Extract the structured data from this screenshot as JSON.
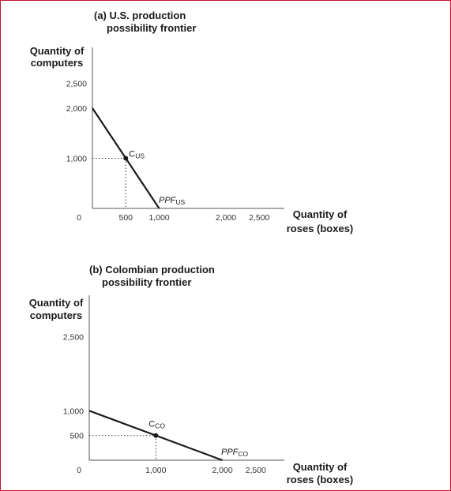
{
  "chart_data": [
    {
      "type": "line",
      "title_line1": "(a) U.S. production",
      "title_line2": "possibility frontier",
      "ylabel_line1": "Quantity of",
      "ylabel_line2": "computers",
      "xlabel_line1": "Quantity of",
      "xlabel_line2": "roses (boxes)",
      "xlim": [
        0,
        2700
      ],
      "ylim": [
        0,
        2700
      ],
      "x_ticks": [
        {
          "value": 0,
          "label": "0"
        },
        {
          "value": 500,
          "label": "500"
        },
        {
          "value": 1000,
          "label": "1,000"
        },
        {
          "value": 2000,
          "label": "2,000"
        },
        {
          "value": 2500,
          "label": "2,500"
        }
      ],
      "y_ticks": [
        {
          "value": 1000,
          "label": "1,000"
        },
        {
          "value": 2000,
          "label": "2,000"
        },
        {
          "value": 2500,
          "label": "2,500"
        }
      ],
      "series": [
        {
          "name": "PPF",
          "sub": "US",
          "x": [
            0,
            1000
          ],
          "y": [
            2000,
            0
          ]
        }
      ],
      "point": {
        "name": "C",
        "sub": "US",
        "x": 500,
        "y": 1000
      }
    },
    {
      "type": "line",
      "title_line1": "(b) Colombian production",
      "title_line2": "possibility frontier",
      "ylabel_line1": "Quantity of",
      "ylabel_line2": "computers",
      "xlabel_line1": "Quantity of",
      "xlabel_line2": "roses (boxes)",
      "xlim": [
        0,
        2700
      ],
      "ylim": [
        0,
        2700
      ],
      "x_ticks": [
        {
          "value": 0,
          "label": "0"
        },
        {
          "value": 1000,
          "label": "1,000"
        },
        {
          "value": 2000,
          "label": "2,000"
        },
        {
          "value": 2500,
          "label": "2,500"
        }
      ],
      "y_ticks": [
        {
          "value": 500,
          "label": "500"
        },
        {
          "value": 1000,
          "label": "1,000"
        },
        {
          "value": 2500,
          "label": "2,500"
        }
      ],
      "series": [
        {
          "name": "PPF",
          "sub": "CO",
          "x": [
            0,
            2000
          ],
          "y": [
            1000,
            0
          ]
        }
      ],
      "point": {
        "name": "C",
        "sub": "CO",
        "x": 1000,
        "y": 500
      }
    }
  ]
}
